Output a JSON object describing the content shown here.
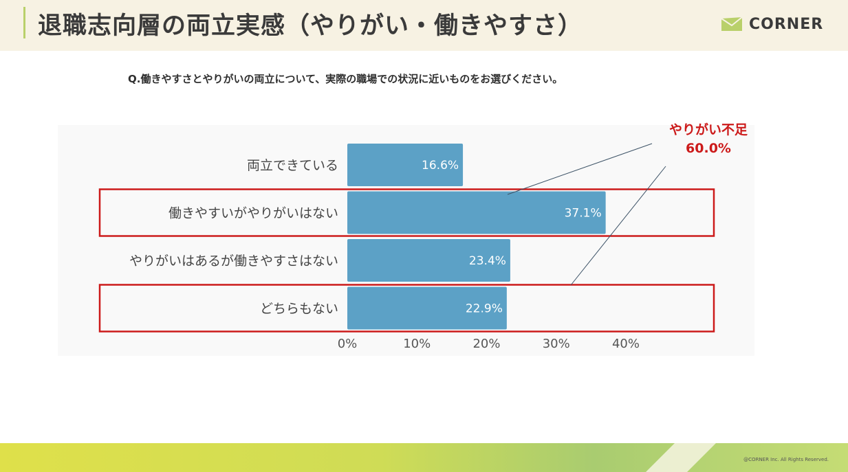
{
  "header": {
    "title": "退職志向層の両立実感（やりがい・働きやすさ）",
    "brand": "CORNER"
  },
  "question": "Q.働きやすさとやりがいの両立について、実際の職場での状況に近いものをお選びください。",
  "callout": {
    "label": "やりがい不足",
    "value": "60.0%"
  },
  "footer": {
    "copyright": "@CORNER Inc. All Rights Reserved."
  },
  "colors": {
    "bar": "#5ca1c6",
    "highlight": "#cc1a1a",
    "accent": "#b9d06a"
  },
  "chart_data": {
    "type": "bar",
    "orientation": "horizontal",
    "categories": [
      "両立できている",
      "働きやすいがやりがいはない",
      "やりがいはあるが働きやすさはない",
      "どちらもない"
    ],
    "values": [
      16.6,
      37.1,
      23.4,
      22.9
    ],
    "value_labels": [
      "16.6%",
      "37.1%",
      "23.4%",
      "22.9%"
    ],
    "xlim": [
      0,
      40
    ],
    "ticks": [
      0,
      10,
      20,
      30,
      40
    ],
    "tick_labels": [
      "0%",
      "10%",
      "20%",
      "30%",
      "40%"
    ],
    "highlighted": [
      "働きやすいがやりがいはない",
      "どちらもない"
    ],
    "grid": false
  }
}
